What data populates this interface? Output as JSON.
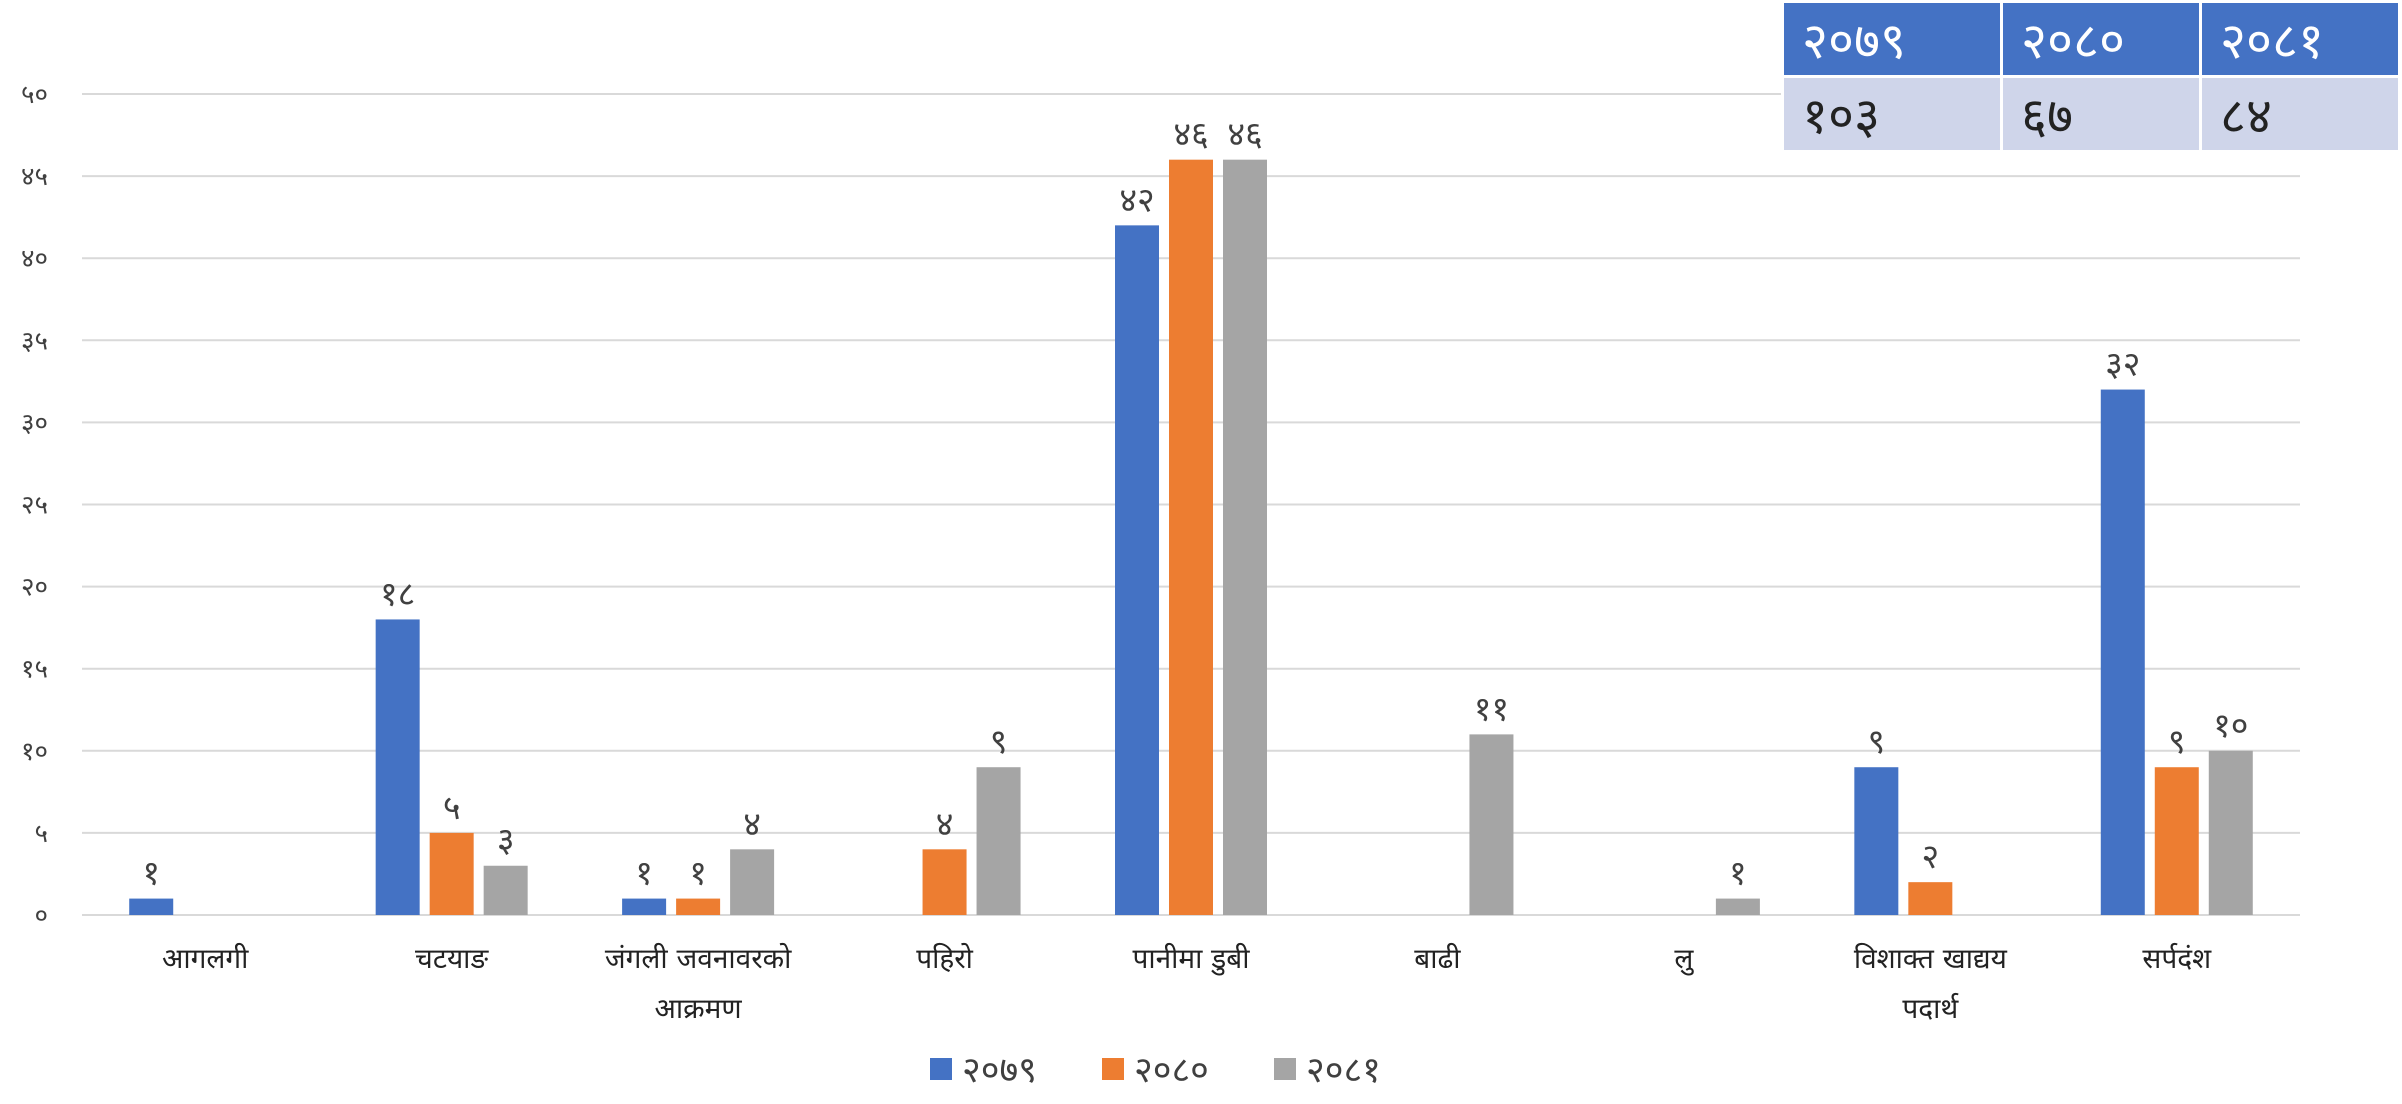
{
  "chart_data": {
    "type": "bar",
    "title": "",
    "xlabel": "",
    "ylabel": "",
    "ylim": [
      0,
      50
    ],
    "yticks": [
      "०",
      "५",
      "१०",
      "१५",
      "२०",
      "२५",
      "३०",
      "३५",
      "४०",
      "४५",
      "५०"
    ],
    "ytick_values": [
      0,
      5,
      10,
      15,
      20,
      25,
      30,
      35,
      40,
      45,
      50
    ],
    "grid": true,
    "legend_position": "bottom",
    "categories": [
      [
        "आगलगी"
      ],
      [
        "चटयाङ"
      ],
      [
        "जंगली जवनावरको",
        "आक्रमण"
      ],
      [
        "पहिरो"
      ],
      [
        "पानीमा डुबी"
      ],
      [
        "बाढी"
      ],
      [
        "लु"
      ],
      [
        "विशाक्त खाद्यय",
        "पदार्थ"
      ],
      [
        "सर्पदंश"
      ]
    ],
    "series": [
      {
        "name": "२०७९",
        "color": "#4472C4",
        "values": [
          1,
          18,
          1,
          0,
          42,
          0,
          0,
          9,
          32
        ],
        "labels": [
          "१",
          "१८",
          "१",
          "",
          "४२",
          "",
          "",
          "९",
          "३२"
        ]
      },
      {
        "name": "२०८०",
        "color": "#ED7D31",
        "values": [
          0,
          5,
          1,
          4,
          46,
          0,
          0,
          2,
          9
        ],
        "labels": [
          "",
          "५",
          "१",
          "४",
          "४६",
          "",
          "",
          "२",
          "९"
        ]
      },
      {
        "name": "२०८१",
        "color": "#A5A5A5",
        "values": [
          0,
          3,
          4,
          9,
          46,
          11,
          1,
          0,
          10
        ],
        "labels": [
          "",
          "३",
          "४",
          "९",
          "४६",
          "११",
          "१",
          "",
          "१०"
        ]
      }
    ]
  },
  "summary_table": {
    "headers": [
      "२०७९",
      "२०८०",
      "२०८१"
    ],
    "values": [
      "१०३",
      "६७",
      "८४"
    ]
  }
}
